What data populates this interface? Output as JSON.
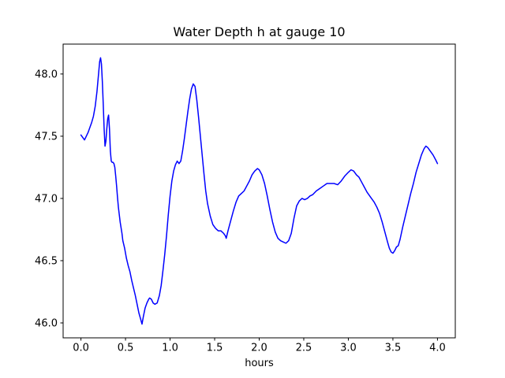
{
  "chart_data": {
    "type": "line",
    "title": "Water Depth h at gauge 10",
    "xlabel": "hours",
    "ylabel": "",
    "xlim": [
      -0.2,
      4.2
    ],
    "ylim": [
      45.88,
      48.24
    ],
    "xticks": [
      0.0,
      0.5,
      1.0,
      1.5,
      2.0,
      2.5,
      3.0,
      3.5,
      4.0
    ],
    "xtick_labels": [
      "0.0",
      "0.5",
      "1.0",
      "1.5",
      "2.0",
      "2.5",
      "3.0",
      "3.5",
      "4.0"
    ],
    "yticks": [
      46.0,
      46.5,
      47.0,
      47.5,
      48.0
    ],
    "ytick_labels": [
      "46.0",
      "46.5",
      "47.0",
      "47.5",
      "48.0"
    ],
    "grid": false,
    "legend": null,
    "line_color": "#0000ff",
    "line_width": 1.5,
    "series": [
      {
        "name": "water_depth_h",
        "x": [
          0.0,
          0.02,
          0.04,
          0.06,
          0.08,
          0.1,
          0.12,
          0.14,
          0.16,
          0.18,
          0.2,
          0.21,
          0.22,
          0.23,
          0.24,
          0.25,
          0.26,
          0.27,
          0.28,
          0.29,
          0.3,
          0.31,
          0.32,
          0.33,
          0.34,
          0.35,
          0.36,
          0.37,
          0.38,
          0.39,
          0.4,
          0.41,
          0.42,
          0.44,
          0.46,
          0.47,
          0.49,
          0.51,
          0.53,
          0.55,
          0.57,
          0.59,
          0.61,
          0.63,
          0.65,
          0.67,
          0.685,
          0.7,
          0.72,
          0.74,
          0.76,
          0.77,
          0.79,
          0.81,
          0.83,
          0.855,
          0.88,
          0.9,
          0.92,
          0.94,
          0.96,
          0.98,
          1.0,
          1.02,
          1.04,
          1.06,
          1.08,
          1.1,
          1.12,
          1.14,
          1.16,
          1.18,
          1.2,
          1.22,
          1.24,
          1.26,
          1.28,
          1.3,
          1.32,
          1.34,
          1.36,
          1.38,
          1.4,
          1.42,
          1.45,
          1.48,
          1.51,
          1.54,
          1.57,
          1.6,
          1.62,
          1.63,
          1.65,
          1.68,
          1.71,
          1.74,
          1.77,
          1.8,
          1.83,
          1.86,
          1.89,
          1.92,
          1.95,
          1.98,
          2.0,
          2.03,
          2.06,
          2.09,
          2.12,
          2.15,
          2.18,
          2.21,
          2.24,
          2.27,
          2.3,
          2.33,
          2.36,
          2.39,
          2.42,
          2.45,
          2.48,
          2.51,
          2.54,
          2.57,
          2.6,
          2.64,
          2.68,
          2.72,
          2.76,
          2.8,
          2.84,
          2.88,
          2.92,
          2.96,
          3.0,
          3.03,
          3.06,
          3.09,
          3.12,
          3.15,
          3.18,
          3.21,
          3.25,
          3.29,
          3.32,
          3.35,
          3.38,
          3.41,
          3.44,
          3.46,
          3.48,
          3.5,
          3.52,
          3.54,
          3.56,
          3.58,
          3.61,
          3.64,
          3.67,
          3.7,
          3.73,
          3.76,
          3.79,
          3.82,
          3.85,
          3.87,
          3.89,
          3.92,
          3.95,
          3.98,
          4.0
        ],
        "y": [
          47.51,
          47.49,
          47.47,
          47.5,
          47.53,
          47.57,
          47.61,
          47.66,
          47.74,
          47.86,
          48.02,
          48.1,
          48.13,
          48.08,
          47.94,
          47.76,
          47.56,
          47.42,
          47.46,
          47.56,
          47.64,
          47.67,
          47.56,
          47.38,
          47.3,
          47.29,
          47.29,
          47.28,
          47.25,
          47.18,
          47.1,
          47.01,
          46.93,
          46.81,
          46.72,
          46.66,
          46.6,
          46.52,
          46.46,
          46.41,
          46.34,
          46.28,
          46.22,
          46.15,
          46.08,
          46.03,
          45.99,
          46.05,
          46.12,
          46.16,
          46.19,
          46.2,
          46.19,
          46.16,
          46.15,
          46.16,
          46.22,
          46.3,
          46.42,
          46.55,
          46.7,
          46.87,
          47.02,
          47.14,
          47.22,
          47.27,
          47.3,
          47.28,
          47.3,
          47.38,
          47.48,
          47.59,
          47.7,
          47.8,
          47.88,
          47.92,
          47.9,
          47.79,
          47.65,
          47.5,
          47.35,
          47.2,
          47.06,
          46.96,
          46.86,
          46.79,
          46.76,
          46.74,
          46.74,
          46.72,
          46.7,
          46.68,
          46.74,
          46.82,
          46.9,
          46.97,
          47.02,
          47.04,
          47.06,
          47.1,
          47.14,
          47.19,
          47.22,
          47.24,
          47.23,
          47.19,
          47.12,
          47.02,
          46.91,
          46.81,
          46.73,
          46.68,
          46.66,
          46.65,
          46.64,
          46.66,
          46.72,
          46.84,
          46.94,
          46.98,
          47.0,
          46.99,
          47.0,
          47.02,
          47.03,
          47.06,
          47.08,
          47.1,
          47.12,
          47.12,
          47.12,
          47.11,
          47.14,
          47.18,
          47.21,
          47.23,
          47.22,
          47.19,
          47.17,
          47.13,
          47.09,
          47.05,
          47.01,
          46.97,
          46.93,
          46.88,
          46.81,
          46.73,
          46.65,
          46.6,
          46.57,
          46.56,
          46.58,
          46.61,
          46.62,
          46.67,
          46.77,
          46.86,
          46.95,
          47.04,
          47.12,
          47.21,
          47.28,
          47.35,
          47.4,
          47.42,
          47.41,
          47.38,
          47.35,
          47.31,
          47.28
        ]
      }
    ]
  }
}
